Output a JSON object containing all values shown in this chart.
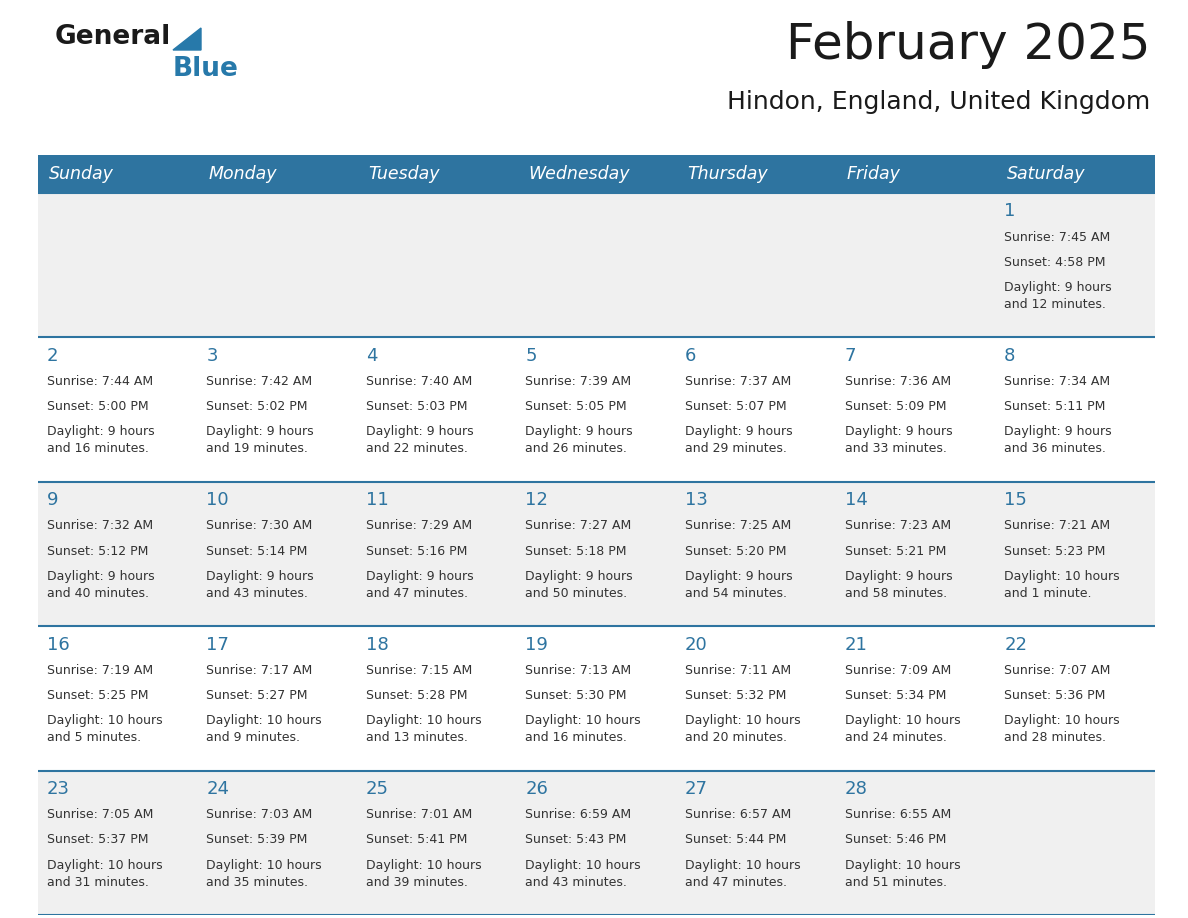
{
  "title": "February 2025",
  "subtitle": "Hindon, England, United Kingdom",
  "header_bg_color": "#2E74A0",
  "header_text_color": "#FFFFFF",
  "day_names": [
    "Sunday",
    "Monday",
    "Tuesday",
    "Wednesday",
    "Thursday",
    "Friday",
    "Saturday"
  ],
  "bg_color": "#FFFFFF",
  "cell_bg_even": "#F0F0F0",
  "cell_bg_odd": "#FFFFFF",
  "cell_border_color": "#2E74A0",
  "day_number_color": "#2E74A0",
  "cell_text_color": "#333333",
  "title_color": "#1a1a1a",
  "subtitle_color": "#1a1a1a",
  "calendar": [
    [
      null,
      null,
      null,
      null,
      null,
      null,
      {
        "day": 1,
        "sunrise": "7:45 AM",
        "sunset": "4:58 PM",
        "daylight": "9 hours\nand 12 minutes."
      }
    ],
    [
      {
        "day": 2,
        "sunrise": "7:44 AM",
        "sunset": "5:00 PM",
        "daylight": "9 hours\nand 16 minutes."
      },
      {
        "day": 3,
        "sunrise": "7:42 AM",
        "sunset": "5:02 PM",
        "daylight": "9 hours\nand 19 minutes."
      },
      {
        "day": 4,
        "sunrise": "7:40 AM",
        "sunset": "5:03 PM",
        "daylight": "9 hours\nand 22 minutes."
      },
      {
        "day": 5,
        "sunrise": "7:39 AM",
        "sunset": "5:05 PM",
        "daylight": "9 hours\nand 26 minutes."
      },
      {
        "day": 6,
        "sunrise": "7:37 AM",
        "sunset": "5:07 PM",
        "daylight": "9 hours\nand 29 minutes."
      },
      {
        "day": 7,
        "sunrise": "7:36 AM",
        "sunset": "5:09 PM",
        "daylight": "9 hours\nand 33 minutes."
      },
      {
        "day": 8,
        "sunrise": "7:34 AM",
        "sunset": "5:11 PM",
        "daylight": "9 hours\nand 36 minutes."
      }
    ],
    [
      {
        "day": 9,
        "sunrise": "7:32 AM",
        "sunset": "5:12 PM",
        "daylight": "9 hours\nand 40 minutes."
      },
      {
        "day": 10,
        "sunrise": "7:30 AM",
        "sunset": "5:14 PM",
        "daylight": "9 hours\nand 43 minutes."
      },
      {
        "day": 11,
        "sunrise": "7:29 AM",
        "sunset": "5:16 PM",
        "daylight": "9 hours\nand 47 minutes."
      },
      {
        "day": 12,
        "sunrise": "7:27 AM",
        "sunset": "5:18 PM",
        "daylight": "9 hours\nand 50 minutes."
      },
      {
        "day": 13,
        "sunrise": "7:25 AM",
        "sunset": "5:20 PM",
        "daylight": "9 hours\nand 54 minutes."
      },
      {
        "day": 14,
        "sunrise": "7:23 AM",
        "sunset": "5:21 PM",
        "daylight": "9 hours\nand 58 minutes."
      },
      {
        "day": 15,
        "sunrise": "7:21 AM",
        "sunset": "5:23 PM",
        "daylight": "10 hours\nand 1 minute."
      }
    ],
    [
      {
        "day": 16,
        "sunrise": "7:19 AM",
        "sunset": "5:25 PM",
        "daylight": "10 hours\nand 5 minutes."
      },
      {
        "day": 17,
        "sunrise": "7:17 AM",
        "sunset": "5:27 PM",
        "daylight": "10 hours\nand 9 minutes."
      },
      {
        "day": 18,
        "sunrise": "7:15 AM",
        "sunset": "5:28 PM",
        "daylight": "10 hours\nand 13 minutes."
      },
      {
        "day": 19,
        "sunrise": "7:13 AM",
        "sunset": "5:30 PM",
        "daylight": "10 hours\nand 16 minutes."
      },
      {
        "day": 20,
        "sunrise": "7:11 AM",
        "sunset": "5:32 PM",
        "daylight": "10 hours\nand 20 minutes."
      },
      {
        "day": 21,
        "sunrise": "7:09 AM",
        "sunset": "5:34 PM",
        "daylight": "10 hours\nand 24 minutes."
      },
      {
        "day": 22,
        "sunrise": "7:07 AM",
        "sunset": "5:36 PM",
        "daylight": "10 hours\nand 28 minutes."
      }
    ],
    [
      {
        "day": 23,
        "sunrise": "7:05 AM",
        "sunset": "5:37 PM",
        "daylight": "10 hours\nand 31 minutes."
      },
      {
        "day": 24,
        "sunrise": "7:03 AM",
        "sunset": "5:39 PM",
        "daylight": "10 hours\nand 35 minutes."
      },
      {
        "day": 25,
        "sunrise": "7:01 AM",
        "sunset": "5:41 PM",
        "daylight": "10 hours\nand 39 minutes."
      },
      {
        "day": 26,
        "sunrise": "6:59 AM",
        "sunset": "5:43 PM",
        "daylight": "10 hours\nand 43 minutes."
      },
      {
        "day": 27,
        "sunrise": "6:57 AM",
        "sunset": "5:44 PM",
        "daylight": "10 hours\nand 47 minutes."
      },
      {
        "day": 28,
        "sunrise": "6:55 AM",
        "sunset": "5:46 PM",
        "daylight": "10 hours\nand 51 minutes."
      },
      null
    ]
  ]
}
